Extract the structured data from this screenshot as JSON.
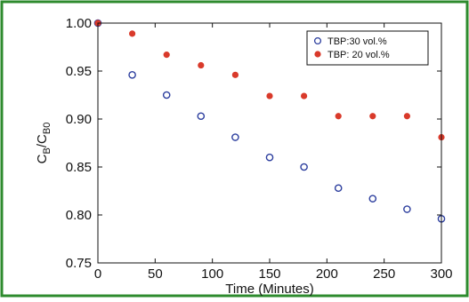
{
  "chart_data": {
    "type": "scatter",
    "title": "",
    "xlabel": "Time (Minutes)",
    "ylabel": {
      "main": "C",
      "sub1": "B",
      "slash": "/C",
      "sub2": "B0"
    },
    "xlim": [
      0,
      300
    ],
    "ylim": [
      0.75,
      1.0
    ],
    "xticks": [
      0,
      50,
      100,
      150,
      200,
      250,
      300
    ],
    "yticks": [
      0.75,
      0.8,
      0.85,
      0.9,
      0.95,
      1.0
    ],
    "xtick_labels": [
      "0",
      "50",
      "100",
      "150",
      "200",
      "250",
      "300"
    ],
    "ytick_labels": [
      "0.75",
      "0.80",
      "0.85",
      "0.90",
      "0.95",
      "1.00"
    ],
    "grid": false,
    "legend_position": "top-right",
    "series": [
      {
        "name": "TBP:30 vol.%",
        "marker": "open-circle",
        "color": "#2c3e9e",
        "x": [
          0,
          30,
          60,
          90,
          120,
          150,
          180,
          210,
          240,
          270,
          300
        ],
        "y": [
          1.0,
          0.946,
          0.925,
          0.903,
          0.881,
          0.86,
          0.85,
          0.828,
          0.817,
          0.806,
          0.796
        ]
      },
      {
        "name": "TBP: 20 vol.%",
        "marker": "filled-circle",
        "color": "#d93a2b",
        "x": [
          0,
          30,
          60,
          90,
          120,
          150,
          180,
          210,
          240,
          270,
          300
        ],
        "y": [
          1.0,
          0.989,
          0.967,
          0.956,
          0.946,
          0.924,
          0.924,
          0.903,
          0.903,
          0.903,
          0.881
        ]
      }
    ]
  },
  "colors": {
    "frame": "#2e8b2e",
    "axes": "#111111"
  }
}
